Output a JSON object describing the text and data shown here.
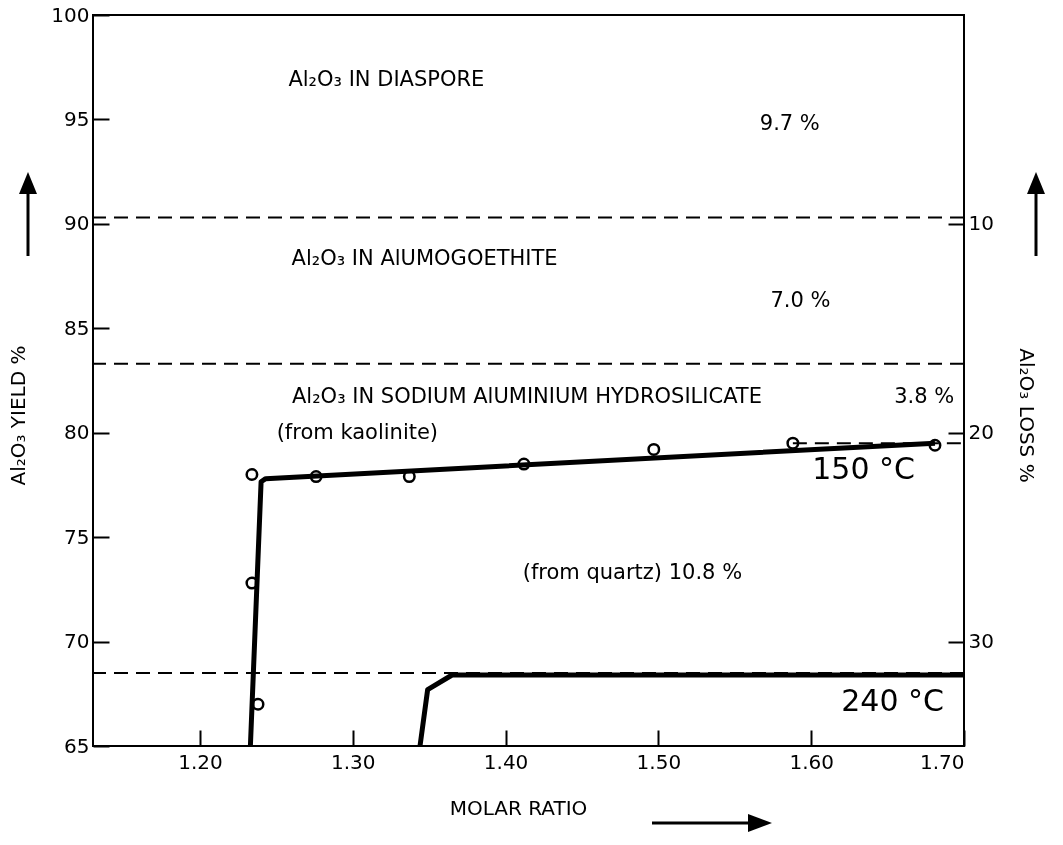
{
  "chart_data": {
    "type": "line",
    "xlabel": "MOLAR RATIO",
    "ylabel": "Al₂O₃ YIELD %",
    "y2label": "Al₂O₃ LOSS %",
    "xlim": [
      1.13,
      1.7
    ],
    "xticks": [
      {
        "value": 1.2,
        "label": "1.20"
      },
      {
        "value": 1.3,
        "label": "1.30"
      },
      {
        "value": 1.4,
        "label": "1.40"
      },
      {
        "value": 1.5,
        "label": "1.50"
      },
      {
        "value": 1.6,
        "label": "1.60"
      },
      {
        "value": 1.7,
        "label": "1.70"
      }
    ],
    "ylim": [
      65,
      100
    ],
    "yticks": [
      65,
      70,
      75,
      80,
      85,
      90,
      95,
      100
    ],
    "y2lim": [
      35,
      0
    ],
    "y2ticks": [
      10,
      20,
      30
    ],
    "series": [
      {
        "type": "scatter",
        "marker": "circle",
        "color": "#000000",
        "x": [
          1.234,
          1.276,
          1.337,
          1.412,
          1.497,
          1.588,
          1.681,
          1.234,
          1.238
        ],
        "values": [
          78.0,
          77.9,
          77.9,
          78.5,
          79.2,
          79.5,
          79.4,
          72.8,
          67.0
        ]
      },
      {
        "type": "line",
        "name": "150 °C",
        "color": "#000000",
        "x": [
          1.233,
          1.24,
          1.243,
          1.681
        ],
        "values": [
          65,
          77.65,
          77.8,
          79.5
        ]
      },
      {
        "type": "line",
        "name": "240 °C",
        "color": "#000000",
        "x": [
          1.344,
          1.349,
          1.365,
          1.7
        ],
        "values": [
          65,
          67.7,
          68.4,
          68.4
        ]
      },
      {
        "type": "line",
        "line_style": "dashed",
        "color": "#000000",
        "x": [
          1.588,
          1.7
        ],
        "values": [
          79.5,
          79.5
        ]
      }
    ],
    "ref_lines": [
      {
        "axis": "y",
        "value": 90.3,
        "line_style": "dashed",
        "color": "#000000"
      },
      {
        "axis": "y",
        "value": 83.3,
        "line_style": "dashed",
        "color": "#000000"
      },
      {
        "axis": "y",
        "value": 68.5,
        "line_style": "dashed",
        "color": "#000000"
      }
    ],
    "annotations": [
      "Al₂O₃ IN DIASPORE",
      "9.7 %",
      "Al₂O₃ IN AlUMOGOETHITE",
      "7.0 %",
      "Al₂O₃ IN SODIUM AlUMINIUM HYDROSILICATE",
      "3.8 %",
      "(from kaolinite)",
      "(from quartz) 10.8 %"
    ]
  }
}
